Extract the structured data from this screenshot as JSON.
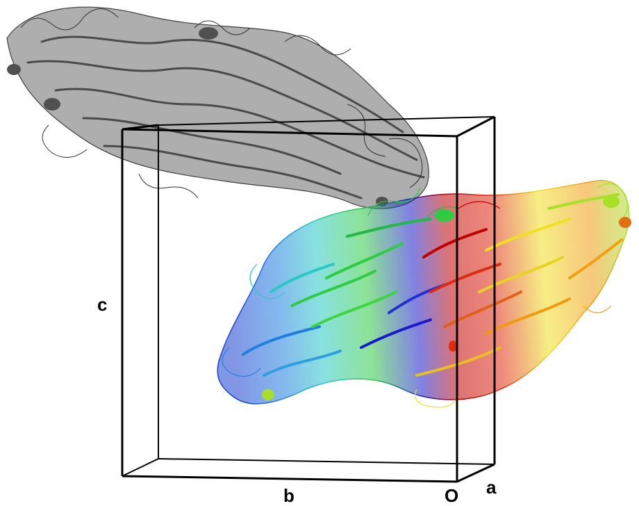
{
  "axes": {
    "a": "a",
    "b": "b",
    "c": "c",
    "origin": "O"
  },
  "molecules": [
    {
      "name": "symmetry-mate",
      "coloring": "grey",
      "color": "#5a5a5a"
    },
    {
      "name": "asymmetric-unit",
      "coloring": "rainbow",
      "colors": [
        "#1a1acc",
        "#1f7fe0",
        "#28c8c8",
        "#2ecc40",
        "#a8e028",
        "#f0e020",
        "#f09a10",
        "#e02a10",
        "#c00000"
      ]
    }
  ],
  "unit_cell": {
    "color": "#000000"
  }
}
